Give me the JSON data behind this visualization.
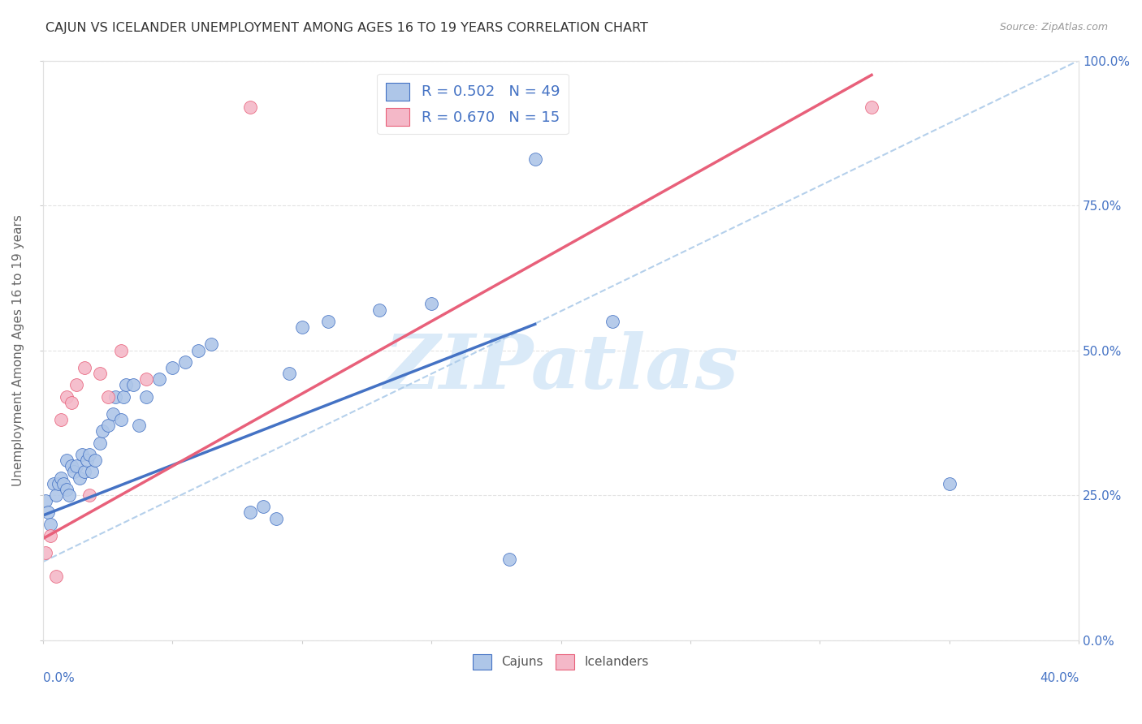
{
  "title": "CAJUN VS ICELANDER UNEMPLOYMENT AMONG AGES 16 TO 19 YEARS CORRELATION CHART",
  "source": "Source: ZipAtlas.com",
  "ylabel_label": "Unemployment Among Ages 16 to 19 years",
  "legend_cajun": "R = 0.502   N = 49",
  "legend_icelander": "R = 0.670   N = 15",
  "legend_bottom_cajun": "Cajuns",
  "legend_bottom_icelander": "Icelanders",
  "cajun_color": "#aec6e8",
  "cajun_line_color": "#4472c4",
  "icelander_color": "#f4b8c8",
  "icelander_line_color": "#e8607a",
  "ref_line_color": "#a8c8e8",
  "watermark": "ZIPatlas",
  "watermark_color": "#daeaf8",
  "title_color": "#333333",
  "axis_color": "#4472c4",
  "legend_r_color": "#4472c4",
  "background_color": "#ffffff",
  "grid_color": "#e0e0e0",
  "cajun_x": [
    0.001,
    0.002,
    0.003,
    0.004,
    0.005,
    0.006,
    0.007,
    0.008,
    0.009,
    0.009,
    0.01,
    0.011,
    0.012,
    0.013,
    0.014,
    0.015,
    0.016,
    0.017,
    0.018,
    0.019,
    0.02,
    0.022,
    0.023,
    0.025,
    0.027,
    0.028,
    0.03,
    0.031,
    0.032,
    0.035,
    0.037,
    0.04,
    0.045,
    0.05,
    0.055,
    0.06,
    0.065,
    0.08,
    0.085,
    0.09,
    0.095,
    0.1,
    0.11,
    0.13,
    0.15,
    0.18,
    0.19,
    0.22,
    0.35
  ],
  "cajun_y": [
    0.24,
    0.22,
    0.2,
    0.27,
    0.25,
    0.27,
    0.28,
    0.27,
    0.26,
    0.31,
    0.25,
    0.3,
    0.29,
    0.3,
    0.28,
    0.32,
    0.29,
    0.31,
    0.32,
    0.29,
    0.31,
    0.34,
    0.36,
    0.37,
    0.39,
    0.42,
    0.38,
    0.42,
    0.44,
    0.44,
    0.37,
    0.42,
    0.45,
    0.47,
    0.48,
    0.5,
    0.51,
    0.22,
    0.23,
    0.21,
    0.46,
    0.54,
    0.55,
    0.57,
    0.58,
    0.14,
    0.83,
    0.55,
    0.27
  ],
  "icelander_x": [
    0.001,
    0.003,
    0.005,
    0.007,
    0.009,
    0.011,
    0.013,
    0.016,
    0.018,
    0.022,
    0.025,
    0.03,
    0.04,
    0.08,
    0.32
  ],
  "icelander_y": [
    0.15,
    0.18,
    0.11,
    0.38,
    0.42,
    0.41,
    0.44,
    0.47,
    0.25,
    0.46,
    0.42,
    0.5,
    0.45,
    0.92,
    0.92
  ],
  "blue_line_x0": 0.0,
  "blue_line_y0": 0.215,
  "blue_line_x1": 0.19,
  "blue_line_y1": 0.545,
  "pink_line_x0": 0.0,
  "pink_line_y0": 0.175,
  "pink_line_x1": 0.32,
  "pink_line_y1": 0.975,
  "ref_line_x0": 0.0,
  "ref_line_y0": 0.135,
  "ref_line_x1": 0.4,
  "ref_line_y1": 1.0,
  "xmin": 0.0,
  "xmax": 0.4,
  "ymin": 0.0,
  "ymax": 1.0,
  "yticks": [
    0.0,
    0.25,
    0.5,
    0.75,
    1.0
  ],
  "ytick_labels": [
    "0.0%",
    "25.0%",
    "50.0%",
    "75.0%",
    "100.0%"
  ]
}
